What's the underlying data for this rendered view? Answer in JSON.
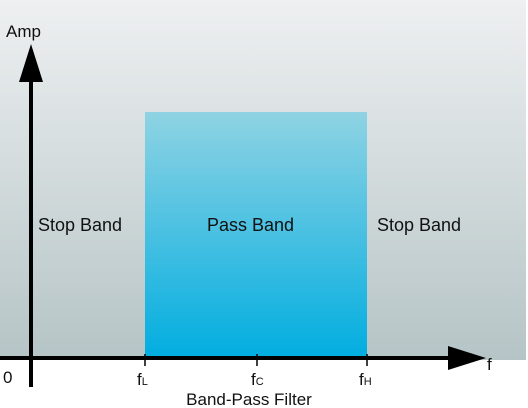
{
  "diagram": {
    "y_axis_label": "Amp",
    "x_axis_label": "f",
    "origin_label": "0",
    "caption": "Band-Pass Filter",
    "regions": {
      "stop_band_left": "Stop Band",
      "pass_band": "Pass Band",
      "stop_band_right": "Stop Band"
    },
    "ticks": [
      {
        "base": "f",
        "sub": "L"
      },
      {
        "base": "f",
        "sub": "C"
      },
      {
        "base": "f",
        "sub": "H"
      }
    ],
    "colors": {
      "background_top": "#eef0f1",
      "background_bottom": "#b5c4c6",
      "pass_band_top": "#8fd3e3",
      "pass_band_bottom": "#00ade0",
      "axis": "#000000"
    }
  }
}
